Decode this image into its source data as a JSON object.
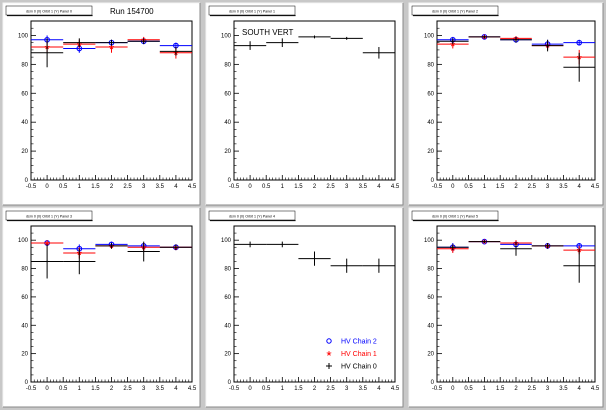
{
  "run_label": "Run 154700",
  "legend": {
    "entries": [
      {
        "label": "HV Chain 2",
        "marker": "circle",
        "color": "#0000ff"
      },
      {
        "label": "HV Chain 1",
        "marker": "star",
        "color": "#ff0000"
      },
      {
        "label": "HV Chain 0",
        "marker": "cross",
        "color": "#000000"
      }
    ]
  },
  "chart_data": [
    {
      "type": "scatter",
      "title": "dsm 0 (0) Orbit 1 (Y) Panel 0",
      "xlim": [
        -0.5,
        4.5
      ],
      "ylim": [
        0,
        110
      ],
      "xticks": [
        "-0.5",
        "0",
        "0.5",
        "1",
        "1.5",
        "2",
        "2.5",
        "3",
        "3.5",
        "4",
        "4.5"
      ],
      "yticks": [
        "0",
        "20",
        "40",
        "60",
        "80",
        "100"
      ],
      "series": [
        {
          "color": "#0000ff",
          "marker": "circle",
          "points": [
            {
              "x": 0,
              "y": 97,
              "err": 3
            },
            {
              "x": 1,
              "y": 91,
              "err": 3
            },
            {
              "x": 2,
              "y": 95,
              "err": 2
            },
            {
              "x": 3,
              "y": 96,
              "err": 2
            },
            {
              "x": 4,
              "y": 93,
              "err": 2
            }
          ]
        },
        {
          "color": "#ff0000",
          "marker": "star",
          "points": [
            {
              "x": 0,
              "y": 92,
              "err": 4
            },
            {
              "x": 1,
              "y": 94,
              "err": 3
            },
            {
              "x": 2,
              "y": 92,
              "err": 4
            },
            {
              "x": 3,
              "y": 97,
              "err": 2
            },
            {
              "x": 4,
              "y": 88,
              "err": 4
            }
          ]
        },
        {
          "color": "#000000",
          "marker": "cross",
          "points": [
            {
              "x": 0,
              "y": 88,
              "err": 10
            },
            {
              "x": 1,
              "y": 95,
              "err": 3
            },
            {
              "x": 2,
              "y": 95,
              "err": 2
            },
            {
              "x": 3,
              "y": 96,
              "err": 2
            },
            {
              "x": 4,
              "y": 89,
              "err": 3
            }
          ]
        }
      ]
    },
    {
      "type": "scatter",
      "title": "dsm 0 (0) Orbit 1 (Y) Panel 1",
      "annotation": "SOUTH VERT",
      "xlim": [
        -0.5,
        4.5
      ],
      "ylim": [
        0,
        110
      ],
      "xticks": [
        "-0.5",
        "0",
        "0.5",
        "1",
        "1.5",
        "2",
        "2.5",
        "3",
        "3.5",
        "4",
        "4.5"
      ],
      "yticks": [
        "0",
        "20",
        "40",
        "60",
        "80",
        "100"
      ],
      "series": [
        {
          "color": "#000000",
          "marker": "cross",
          "points": [
            {
              "x": 0,
              "y": 93,
              "err": 3
            },
            {
              "x": 1,
              "y": 95,
              "err": 3
            },
            {
              "x": 2,
              "y": 99,
              "err": 1
            },
            {
              "x": 3,
              "y": 98,
              "err": 1
            },
            {
              "x": 4,
              "y": 88,
              "err": 4
            }
          ]
        }
      ]
    },
    {
      "type": "scatter",
      "title": "dsm 0 (0) Orbit 1 (Y) Panel 2",
      "xlim": [
        -0.5,
        4.5
      ],
      "ylim": [
        0,
        110
      ],
      "xticks": [
        "-0.5",
        "0",
        "0.5",
        "1",
        "1.5",
        "2",
        "2.5",
        "3",
        "3.5",
        "4",
        "4.5"
      ],
      "yticks": [
        "0",
        "20",
        "40",
        "60",
        "80",
        "100"
      ],
      "series": [
        {
          "color": "#0000ff",
          "marker": "circle",
          "points": [
            {
              "x": 0,
              "y": 97,
              "err": 2
            },
            {
              "x": 1,
              "y": 99,
              "err": 1
            },
            {
              "x": 2,
              "y": 97,
              "err": 2
            },
            {
              "x": 3,
              "y": 94,
              "err": 3
            },
            {
              "x": 4,
              "y": 95,
              "err": 2
            }
          ]
        },
        {
          "color": "#ff0000",
          "marker": "star",
          "points": [
            {
              "x": 0,
              "y": 94,
              "err": 3
            },
            {
              "x": 1,
              "y": 99,
              "err": 1
            },
            {
              "x": 2,
              "y": 98,
              "err": 1
            },
            {
              "x": 3,
              "y": 93,
              "err": 3
            },
            {
              "x": 4,
              "y": 85,
              "err": 5
            }
          ]
        },
        {
          "color": "#000000",
          "marker": "cross",
          "points": [
            {
              "x": 0,
              "y": 96,
              "err": 2
            },
            {
              "x": 1,
              "y": 99,
              "err": 1
            },
            {
              "x": 2,
              "y": 97,
              "err": 2
            },
            {
              "x": 3,
              "y": 93,
              "err": 4
            },
            {
              "x": 4,
              "y": 78,
              "err": 10
            }
          ]
        }
      ]
    },
    {
      "type": "scatter",
      "title": "dsm 0 (0) Orbit 1 (Y) Panel 3",
      "xlim": [
        -0.5,
        4.5
      ],
      "ylim": [
        0,
        110
      ],
      "xticks": [
        "-0.5",
        "0",
        "0.5",
        "1",
        "1.5",
        "2",
        "2.5",
        "3",
        "3.5",
        "4",
        "4.5"
      ],
      "yticks": [
        "0",
        "20",
        "40",
        "60",
        "80",
        "100"
      ],
      "series": [
        {
          "color": "#0000ff",
          "marker": "circle",
          "points": [
            {
              "x": 0,
              "y": 98,
              "err": 2
            },
            {
              "x": 1,
              "y": 94,
              "err": 3
            },
            {
              "x": 2,
              "y": 97,
              "err": 2
            },
            {
              "x": 3,
              "y": 96,
              "err": 2
            },
            {
              "x": 4,
              "y": 95,
              "err": 2
            }
          ]
        },
        {
          "color": "#ff0000",
          "marker": "star",
          "points": [
            {
              "x": 0,
              "y": 98,
              "err": 2
            },
            {
              "x": 1,
              "y": 91,
              "err": 4
            },
            {
              "x": 2,
              "y": 96,
              "err": 2
            },
            {
              "x": 3,
              "y": 95,
              "err": 3
            },
            {
              "x": 4,
              "y": 95,
              "err": 2
            }
          ]
        },
        {
          "color": "#000000",
          "marker": "cross",
          "points": [
            {
              "x": 0,
              "y": 85,
              "err": 12
            },
            {
              "x": 1,
              "y": 85,
              "err": 9
            },
            {
              "x": 2,
              "y": 96,
              "err": 2
            },
            {
              "x": 3,
              "y": 92,
              "err": 7
            },
            {
              "x": 4,
              "y": 95,
              "err": 2
            }
          ]
        }
      ]
    },
    {
      "type": "scatter",
      "title": "dsm 0 (0) Orbit 1 (Y) Panel 4",
      "xlim": [
        -0.5,
        4.5
      ],
      "ylim": [
        0,
        110
      ],
      "xticks": [
        "-0.5",
        "0",
        "0.5",
        "1",
        "1.5",
        "2",
        "2.5",
        "3",
        "3.5",
        "4",
        "4.5"
      ],
      "yticks": [
        "0",
        "20",
        "40",
        "60",
        "80",
        "100"
      ],
      "has_legend": true,
      "series": [
        {
          "color": "#000000",
          "marker": "cross",
          "points": [
            {
              "x": 0,
              "y": 97,
              "err": 2
            },
            {
              "x": 1,
              "y": 97,
              "err": 2
            },
            {
              "x": 2,
              "y": 87,
              "err": 5
            },
            {
              "x": 3,
              "y": 82,
              "err": 5
            },
            {
              "x": 4,
              "y": 82,
              "err": 5
            }
          ]
        }
      ]
    },
    {
      "type": "scatter",
      "title": "dsm 0 (0) Orbit 1 (Y) Panel 5",
      "xlim": [
        -0.5,
        4.5
      ],
      "ylim": [
        0,
        110
      ],
      "xticks": [
        "-0.5",
        "0",
        "0.5",
        "1",
        "1.5",
        "2",
        "2.5",
        "3",
        "3.5",
        "4",
        "4.5"
      ],
      "yticks": [
        "0",
        "20",
        "40",
        "60",
        "80",
        "100"
      ],
      "series": [
        {
          "color": "#0000ff",
          "marker": "circle",
          "points": [
            {
              "x": 0,
              "y": 95,
              "err": 3
            },
            {
              "x": 1,
              "y": 99,
              "err": 1
            },
            {
              "x": 2,
              "y": 97,
              "err": 2
            },
            {
              "x": 3,
              "y": 96,
              "err": 2
            },
            {
              "x": 4,
              "y": 96,
              "err": 2
            }
          ]
        },
        {
          "color": "#ff0000",
          "marker": "star",
          "points": [
            {
              "x": 0,
              "y": 94,
              "err": 3
            },
            {
              "x": 1,
              "y": 99,
              "err": 1
            },
            {
              "x": 2,
              "y": 98,
              "err": 2
            },
            {
              "x": 3,
              "y": 96,
              "err": 2
            },
            {
              "x": 4,
              "y": 93,
              "err": 3
            }
          ]
        },
        {
          "color": "#000000",
          "marker": "cross",
          "points": [
            {
              "x": 0,
              "y": 95,
              "err": 2
            },
            {
              "x": 1,
              "y": 99,
              "err": 1
            },
            {
              "x": 2,
              "y": 94,
              "err": 5
            },
            {
              "x": 3,
              "y": 96,
              "err": 2
            },
            {
              "x": 4,
              "y": 82,
              "err": 12
            }
          ]
        }
      ]
    }
  ]
}
